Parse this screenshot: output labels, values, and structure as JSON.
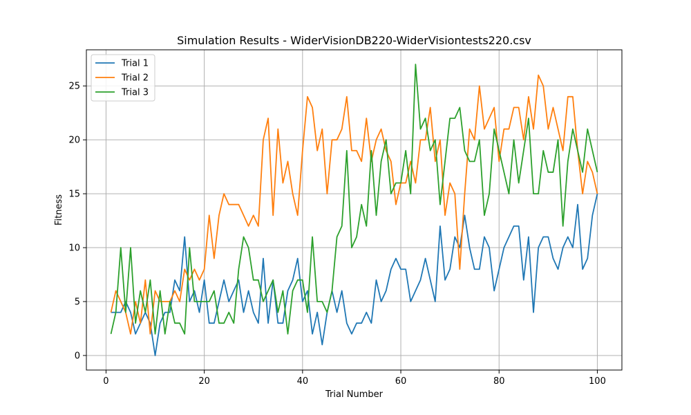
{
  "chart_data": {
    "type": "line",
    "title": "Simulation Results - WiderVisionDB220-WiderVisiontests220.csv",
    "xlabel": "Trial Number",
    "ylabel": "Fitness",
    "xlim": [
      -4,
      105
    ],
    "ylim": [
      -1.35,
      28.35
    ],
    "xticks": [
      0,
      20,
      40,
      60,
      80,
      100
    ],
    "yticks": [
      0,
      5,
      10,
      15,
      20,
      25
    ],
    "grid": true,
    "legend_position": "top-left",
    "x_start": 1,
    "series": [
      {
        "name": "Trial 1",
        "color": "#1f77b4",
        "values": [
          4,
          4,
          4,
          5,
          4,
          2,
          3,
          4,
          3,
          0,
          3,
          4,
          4,
          7,
          6,
          11,
          5,
          6,
          4,
          7,
          3,
          3,
          5,
          7,
          5,
          6,
          7,
          4,
          6,
          4,
          3,
          9,
          3,
          7,
          3,
          3,
          6,
          7,
          9,
          5,
          6,
          2,
          4,
          1,
          4,
          6,
          4,
          6,
          3,
          2,
          3,
          3,
          4,
          3,
          7,
          5,
          6,
          8,
          9,
          8,
          8,
          5,
          6,
          7,
          9,
          7,
          5,
          12,
          7,
          8,
          11,
          10,
          13,
          10,
          8,
          8,
          11,
          10,
          6,
          8,
          10,
          11,
          12,
          12,
          7,
          11,
          4,
          10,
          11,
          11,
          9,
          8,
          10,
          11,
          10,
          14,
          8,
          9,
          13,
          15
        ]
      },
      {
        "name": "Trial 2",
        "color": "#ff7f0e",
        "values": [
          4,
          6,
          5,
          4,
          2,
          5,
          3,
          7,
          2,
          6,
          5,
          5,
          5,
          6,
          5,
          8,
          7,
          8,
          7,
          8,
          13,
          9,
          13,
          15,
          14,
          14,
          14,
          13,
          12,
          13,
          12,
          20,
          22,
          13,
          21,
          16,
          18,
          15,
          13,
          19,
          24,
          23,
          19,
          21,
          15,
          20,
          20,
          21,
          24,
          19,
          19,
          18,
          22,
          18,
          20,
          21,
          19,
          18,
          14,
          16,
          16,
          18,
          16,
          20,
          20,
          23,
          18,
          20,
          13,
          16,
          15,
          8,
          15,
          21,
          20,
          25,
          21,
          22,
          23,
          18,
          21,
          21,
          23,
          23,
          20,
          24,
          21,
          26,
          25,
          21,
          23,
          21,
          19,
          24,
          24,
          19,
          15,
          18,
          17,
          15
        ]
      },
      {
        "name": "Trial 3",
        "color": "#2ca02c",
        "values": [
          2,
          4,
          10,
          4,
          10,
          3,
          6,
          4,
          7,
          2,
          6,
          2,
          5,
          3,
          3,
          2,
          10,
          5,
          5,
          5,
          5,
          6,
          3,
          3,
          4,
          3,
          8,
          11,
          10,
          7,
          7,
          5,
          6,
          7,
          4,
          6,
          2,
          6,
          7,
          7,
          4,
          11,
          5,
          5,
          4,
          6,
          11,
          12,
          19,
          10,
          11,
          14,
          12,
          19,
          13,
          18,
          20,
          15,
          16,
          16,
          19,
          15,
          27,
          21,
          22,
          19,
          20,
          14,
          18,
          22,
          22,
          23,
          19,
          18,
          18,
          20,
          13,
          15,
          21,
          19,
          17,
          15,
          20,
          16,
          19,
          22,
          15,
          15,
          19,
          17,
          17,
          20,
          12,
          18,
          21,
          19,
          17,
          21,
          19,
          17
        ]
      }
    ]
  }
}
